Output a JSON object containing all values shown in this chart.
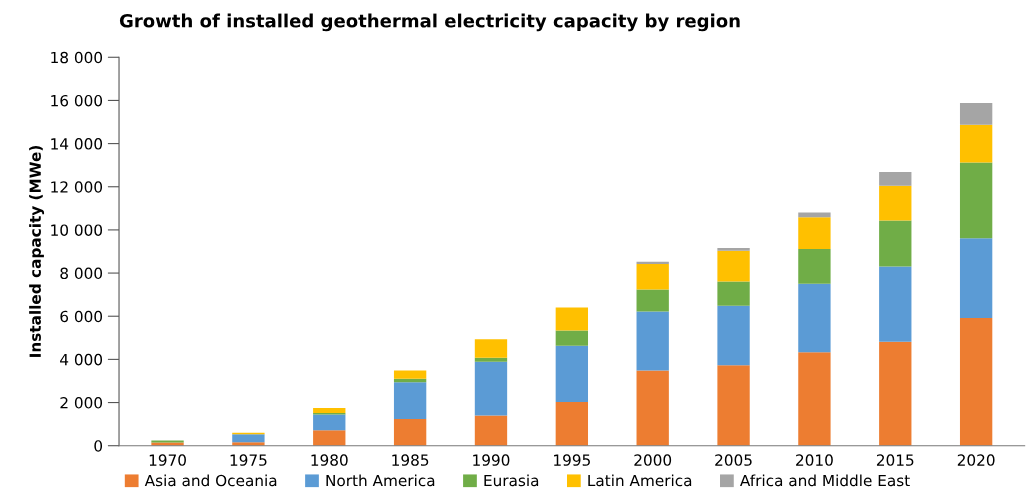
{
  "chart_data": {
    "type": "bar",
    "stacked": true,
    "title": "Growth of installed geothermal electricity capacity by region",
    "ylabel": "Installed capacity (MWe)",
    "categories": [
      "1970",
      "1975",
      "1980",
      "1985",
      "1990",
      "1995",
      "2000",
      "2005",
      "2010",
      "2015",
      "2020"
    ],
    "series": [
      {
        "name": "Asia and Oceania",
        "color": "#ed7d31",
        "values": [
          150,
          160,
          720,
          1240,
          1400,
          2030,
          3480,
          3730,
          4330,
          4820,
          5920
        ]
      },
      {
        "name": "North America",
        "color": "#5b9bd5",
        "values": [
          0,
          370,
          730,
          1700,
          2490,
          2600,
          2740,
          2760,
          3170,
          3480,
          3690
        ]
      },
      {
        "name": "Eurasia",
        "color": "#70ad47",
        "values": [
          90,
          null,
          60,
          160,
          190,
          710,
          1020,
          1120,
          1620,
          2140,
          3510
        ]
      },
      {
        "name": "Latin America",
        "color": "#ffc000",
        "values": [
          0,
          70,
          240,
          380,
          850,
          1070,
          1180,
          1420,
          1470,
          1610,
          1750
        ]
      },
      {
        "name": "Africa and Middle East",
        "color": "#a5a5a5",
        "values": [
          0,
          0,
          0,
          0,
          0,
          0,
          110,
          130,
          220,
          630,
          1010
        ]
      }
    ],
    "ylim": [
      0,
      18000
    ],
    "yticks": [
      0,
      {
        "value": 2000,
        "label": "2 000"
      },
      {
        "value": 4000,
        "label": "4 000"
      },
      {
        "value": 6000,
        "label": "6 000"
      },
      {
        "value": 8000,
        "label": "8 000"
      },
      {
        "value": 10000,
        "label": "10 000"
      },
      {
        "value": 12000,
        "label": "12 000"
      },
      {
        "value": 14000,
        "label": "14 000"
      },
      {
        "value": 16000,
        "label": "16 000"
      },
      {
        "value": 18000,
        "label": "18 000"
      }
    ],
    "grid": false,
    "legend": "bottom"
  }
}
